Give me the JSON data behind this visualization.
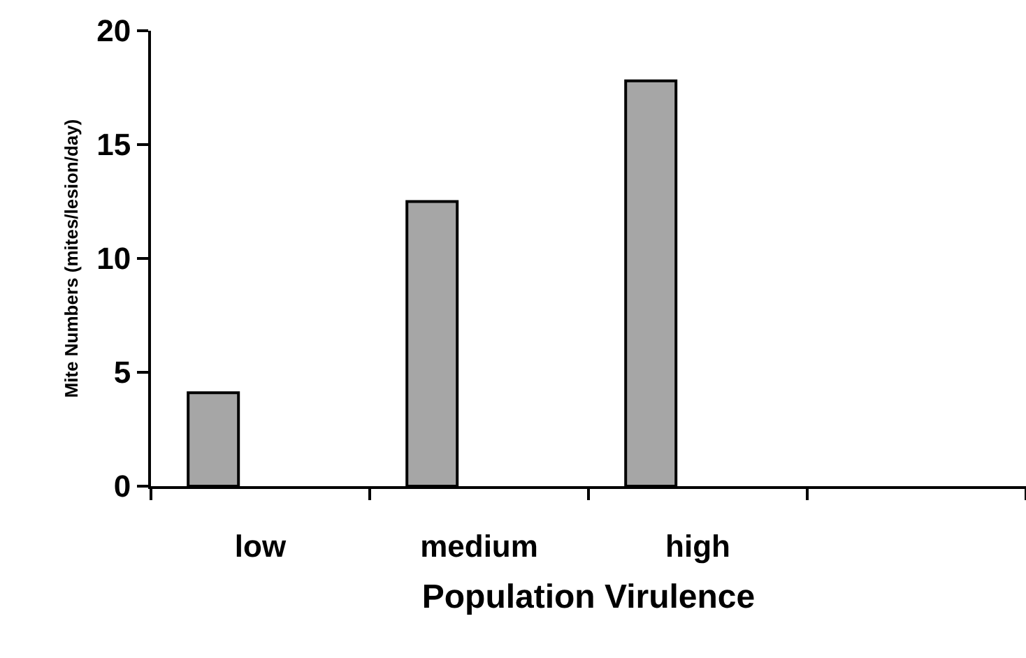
{
  "chart_data": {
    "type": "bar",
    "xlabel": "Population Virulence",
    "ylabel": "Mite Numbers (mites/lesion/day)",
    "categories": [
      "low",
      "medium",
      "high",
      null
    ],
    "values": [
      4.1,
      12.5,
      17.8,
      null
    ],
    "color": "#a6a6a6",
    "ylim": [
      0,
      20
    ],
    "yticks": [
      0,
      5,
      10,
      15,
      20
    ],
    "legend": false
  }
}
